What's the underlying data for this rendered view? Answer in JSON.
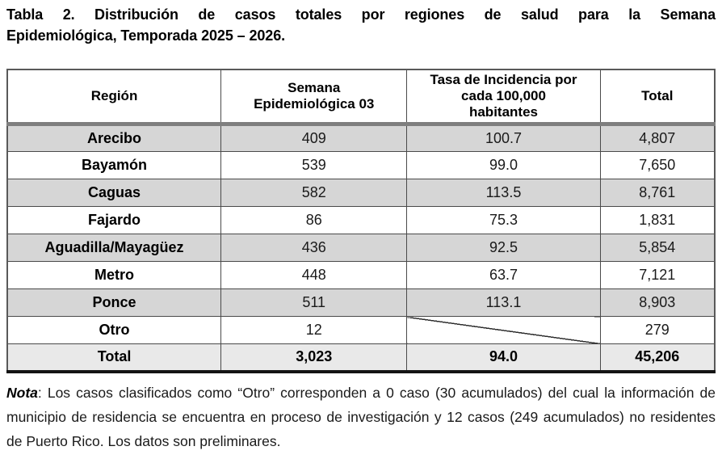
{
  "title": {
    "line1": "Tabla 2. Distribución de casos totales por regiones de salud para la Semana",
    "line2": "Epidemiológica, Temporada 2025 – 2026."
  },
  "table": {
    "columns": [
      "Región",
      "Semana\nEpidemiológica 03",
      "Tasa de Incidencia por\ncada 100,000\nhabitantes",
      "Total"
    ],
    "rows": [
      {
        "region": "Arecibo",
        "semana": "409",
        "tasa": "100.7",
        "total": "4,807",
        "shaded": true,
        "diagonal": false
      },
      {
        "region": "Bayamón",
        "semana": "539",
        "tasa": "99.0",
        "total": "7,650",
        "shaded": false,
        "diagonal": false
      },
      {
        "region": "Caguas",
        "semana": "582",
        "tasa": "113.5",
        "total": "8,761",
        "shaded": true,
        "diagonal": false
      },
      {
        "region": "Fajardo",
        "semana": "86",
        "tasa": "75.3",
        "total": "1,831",
        "shaded": false,
        "diagonal": false
      },
      {
        "region": "Aguadilla/Mayagüez",
        "semana": "436",
        "tasa": "92.5",
        "total": "5,854",
        "shaded": true,
        "diagonal": false
      },
      {
        "region": "Metro",
        "semana": "448",
        "tasa": "63.7",
        "total": "7,121",
        "shaded": false,
        "diagonal": false
      },
      {
        "region": "Ponce",
        "semana": "511",
        "tasa": "113.1",
        "total": "8,903",
        "shaded": true,
        "diagonal": false
      },
      {
        "region": "Otro",
        "semana": "12",
        "tasa": "",
        "total": "279",
        "shaded": false,
        "diagonal": true
      }
    ],
    "total_row": {
      "region": "Total",
      "semana": "3,023",
      "tasa": "94.0",
      "total": "45,206"
    }
  },
  "note": {
    "label": "Nota",
    "text": ": Los casos clasificados como “Otro” corresponden a 0 caso (30 acumulados) del cual la información de municipio de residencia se encuentra en proceso de investigación y 12 casos (249 acumulados) no residentes de Puerto Rico. Los datos son preliminares."
  },
  "colors": {
    "shaded_row": "#d6d6d6",
    "total_row": "#e9e9e9",
    "header_separator": "#7f7f7f",
    "grid_line": "#4a4a4a",
    "outer_border": "#595959",
    "bottom_border": "#141414",
    "text": "#111111"
  }
}
